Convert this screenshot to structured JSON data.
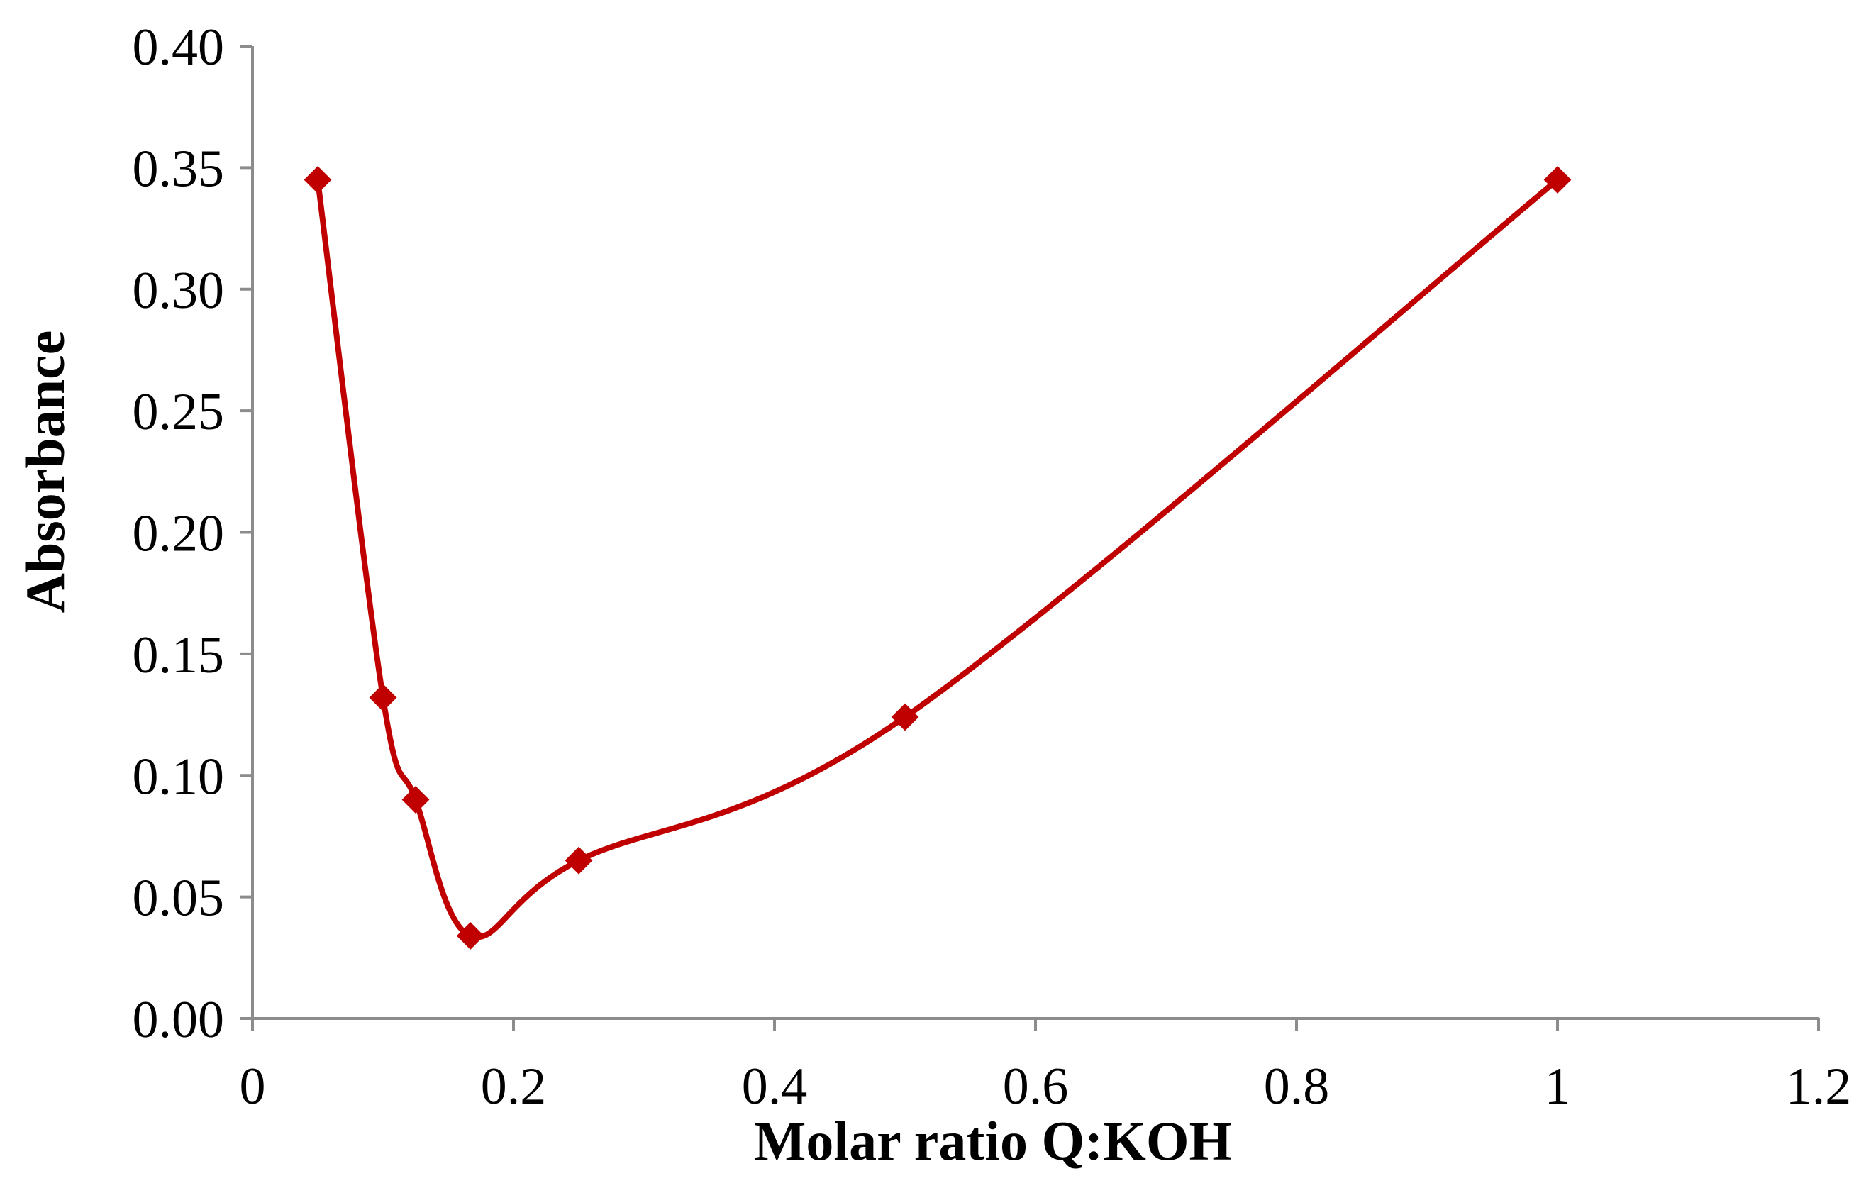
{
  "chart_data": {
    "type": "line",
    "title": "",
    "xlabel": "Molar ratio Q:KOH",
    "ylabel": "Absorbance",
    "xlim": [
      0,
      1.2
    ],
    "ylim": [
      0,
      0.4
    ],
    "x_ticks": [
      "0",
      "0.2",
      "0.4",
      "0.6",
      "0.8",
      "1",
      "1.2"
    ],
    "y_ticks": [
      "0.00",
      "0.05",
      "0.10",
      "0.15",
      "0.20",
      "0.25",
      "0.30",
      "0.35",
      "0.40"
    ],
    "grid": false,
    "legend": "none",
    "smooth": true,
    "marker": "diamond",
    "series": [
      {
        "color": "#c00000",
        "x": [
          0.05,
          0.1,
          0.125,
          0.167,
          0.25,
          0.5,
          1.0
        ],
        "y": [
          0.345,
          0.132,
          0.09,
          0.034,
          0.065,
          0.124,
          0.345
        ]
      }
    ]
  }
}
